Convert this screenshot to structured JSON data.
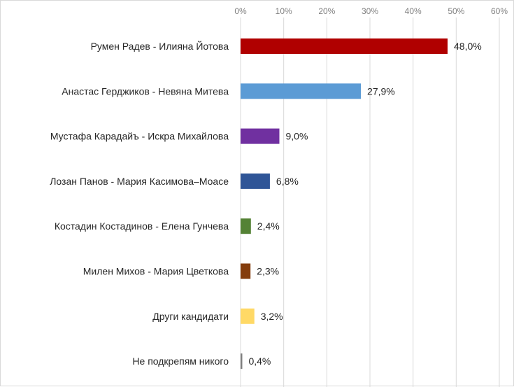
{
  "chart_data": {
    "type": "bar",
    "orientation": "horizontal",
    "title": "",
    "xlabel": "",
    "ylabel": "",
    "xlim": [
      0,
      60
    ],
    "ticks": [
      "0%",
      "10%",
      "20%",
      "30%",
      "40%",
      "50%",
      "60%"
    ],
    "tick_values": [
      0,
      10,
      20,
      30,
      40,
      50,
      60
    ],
    "axis_position": "top",
    "grid": true,
    "legend": "none",
    "categories": [
      "Румен Радев - Илияна Йотова",
      "Анастас Герджиков - Невяна Митева",
      "Мустафа Карадайъ - Искра Михайлова",
      "Лозан Панов - Мария Касимова–Моасе",
      "Костадин Костадинов - Елена Гунчева",
      "Милен Михов - Мария Цветкова",
      "Други кандидати",
      "Не подкрепям никого"
    ],
    "values": [
      48.0,
      27.9,
      9.0,
      6.8,
      2.4,
      2.3,
      3.2,
      0.4
    ],
    "data_labels": [
      "48,0%",
      "27,9%",
      "9,0%",
      "6,8%",
      "2,4%",
      "2,3%",
      "3,2%",
      "0,4%"
    ],
    "colors": [
      "#b00000",
      "#5b9bd5",
      "#7030a0",
      "#2f5597",
      "#548235",
      "#843c0c",
      "#ffd966",
      "#7f7f7f"
    ]
  }
}
